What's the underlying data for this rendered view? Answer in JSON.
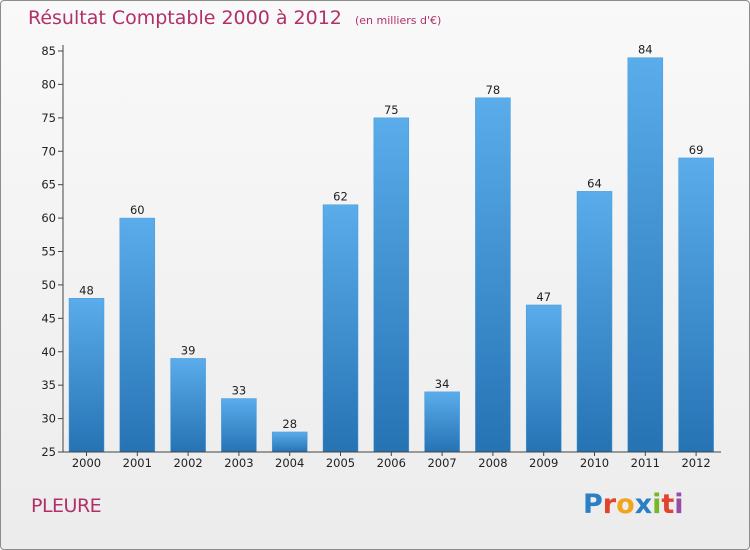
{
  "header": {
    "title": "Résultat Comptable 2000 à 2012",
    "subtitle": "(en milliers d'€)"
  },
  "footer": {
    "commune": "PLEURE",
    "logo": {
      "letters": [
        "P",
        "r",
        "o",
        "x",
        "i",
        "t",
        "i"
      ]
    }
  },
  "colors": {
    "title": "#b0306a",
    "bar_top": "#5aaceb",
    "bar_bottom": "#2673b4",
    "axis": "#444444"
  },
  "chart_data": {
    "type": "bar",
    "title": "Résultat Comptable 2000 à 2012",
    "xlabel": "",
    "ylabel": "",
    "categories": [
      "2000",
      "2001",
      "2002",
      "2003",
      "2004",
      "2005",
      "2006",
      "2007",
      "2008",
      "2009",
      "2010",
      "2011",
      "2012"
    ],
    "values": [
      48,
      60,
      39,
      33,
      28,
      62,
      75,
      34,
      78,
      47,
      64,
      84,
      69
    ],
    "ylim": [
      25,
      85
    ],
    "yticks": [
      25,
      30,
      35,
      40,
      45,
      50,
      55,
      60,
      65,
      70,
      75,
      80,
      85
    ],
    "grid": false
  }
}
